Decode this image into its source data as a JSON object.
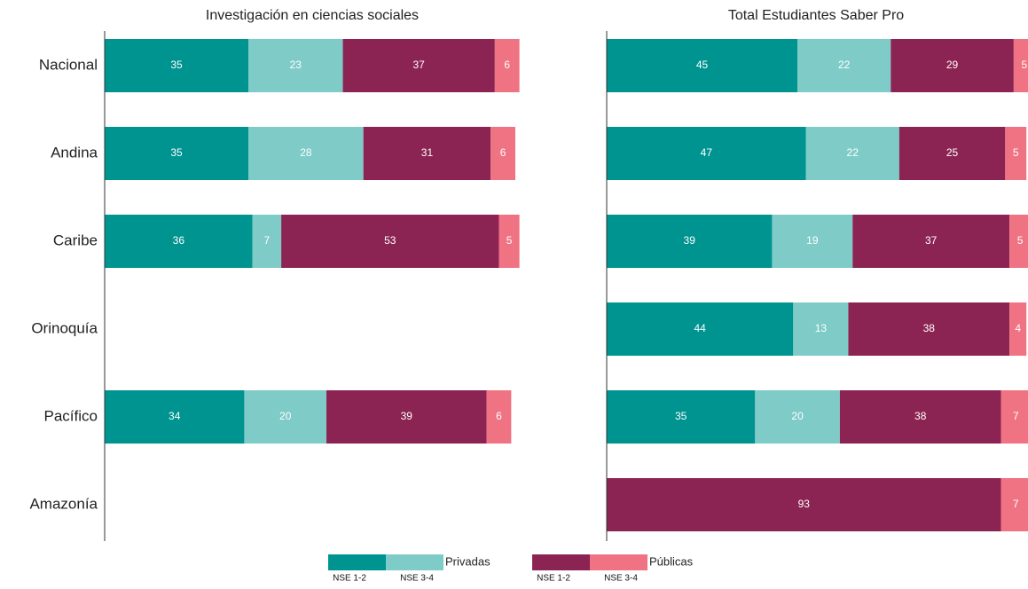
{
  "chart_data": [
    {
      "type": "bar",
      "orientation": "horizontal",
      "stacked": true,
      "title": "Investigación en ciencias sociales",
      "categories": [
        "Nacional",
        "Andina",
        "Caribe",
        "Orinoquía",
        "Pacífico",
        "Amazonía"
      ],
      "xlim": [
        0,
        100
      ],
      "series": [
        {
          "values": [
            35,
            35,
            36,
            null,
            34,
            null
          ]
        },
        {
          "values": [
            23,
            28,
            7,
            null,
            20,
            null
          ]
        },
        {
          "values": [
            37,
            31,
            53,
            null,
            39,
            null
          ]
        },
        {
          "values": [
            6,
            6,
            5,
            null,
            6,
            null
          ]
        }
      ]
    },
    {
      "type": "bar",
      "orientation": "horizontal",
      "stacked": true,
      "title": "Total Estudiantes Saber Pro",
      "xlim": [
        0,
        100
      ],
      "series": [
        {
          "values": [
            45,
            47,
            39,
            44,
            35,
            null
          ]
        },
        {
          "values": [
            22,
            22,
            19,
            13,
            20,
            null
          ]
        },
        {
          "values": [
            29,
            25,
            37,
            38,
            38,
            93
          ]
        },
        {
          "values": [
            5,
            5,
            5,
            4,
            7,
            7
          ]
        }
      ]
    }
  ],
  "legend": [
    {
      "name": "Privadas",
      "entries": [
        {
          "name": "NSE 1-2",
          "color": "#009490"
        },
        {
          "name": "NSE 3-4",
          "color": "#7ecbc8"
        }
      ]
    },
    {
      "name": "Públicas",
      "entries": [
        {
          "name": "NSE 1-2",
          "color": "#8b2452"
        },
        {
          "name": "NSE 3-4",
          "color": "#f07383"
        }
      ]
    }
  ]
}
